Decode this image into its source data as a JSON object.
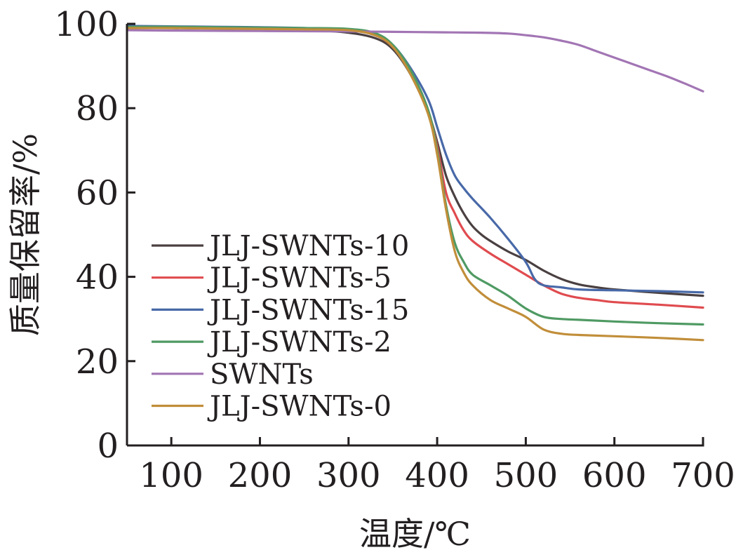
{
  "chart_data": {
    "type": "line",
    "title": "",
    "xlabel": "温度/℃",
    "ylabel": "质量保留率/%",
    "xlim": [
      50,
      700
    ],
    "ylim": [
      0,
      100
    ],
    "x_ticks": [
      100,
      200,
      300,
      400,
      500,
      600,
      700
    ],
    "y_ticks": [
      0,
      20,
      40,
      60,
      80,
      100
    ],
    "grid": false,
    "legend_position": "lower-left",
    "series": [
      {
        "name": "JLJ-SWNTs-10",
        "color": "#4a4041",
        "points": [
          [
            50,
            99.0
          ],
          [
            100,
            99.0
          ],
          [
            150,
            98.9
          ],
          [
            200,
            98.8
          ],
          [
            250,
            98.6
          ],
          [
            300,
            97.9
          ],
          [
            330,
            96.6
          ],
          [
            350,
            94.0
          ],
          [
            370,
            88.0
          ],
          [
            390,
            79.0
          ],
          [
            400,
            72.0
          ],
          [
            410,
            64.0
          ],
          [
            420,
            59.0
          ],
          [
            430,
            55.0
          ],
          [
            440,
            52.0
          ],
          [
            450,
            50.0
          ],
          [
            460,
            48.5
          ],
          [
            480,
            46.0
          ],
          [
            500,
            44.0
          ],
          [
            520,
            41.5
          ],
          [
            540,
            39.5
          ],
          [
            560,
            38.2
          ],
          [
            580,
            37.5
          ],
          [
            600,
            37.0
          ],
          [
            650,
            36.2
          ],
          [
            700,
            35.5
          ]
        ]
      },
      {
        "name": "JLJ-SWNTs-5",
        "color": "#e04b4f",
        "points": [
          [
            50,
            99.2
          ],
          [
            100,
            99.2
          ],
          [
            150,
            99.1
          ],
          [
            200,
            99.0
          ],
          [
            250,
            98.9
          ],
          [
            300,
            98.5
          ],
          [
            330,
            97.3
          ],
          [
            350,
            94.5
          ],
          [
            370,
            88.5
          ],
          [
            390,
            79.0
          ],
          [
            400,
            71.0
          ],
          [
            410,
            60.0
          ],
          [
            420,
            55.0
          ],
          [
            430,
            51.0
          ],
          [
            440,
            48.5
          ],
          [
            460,
            45.5
          ],
          [
            480,
            43.0
          ],
          [
            500,
            40.5
          ],
          [
            520,
            38.0
          ],
          [
            540,
            36.0
          ],
          [
            560,
            35.0
          ],
          [
            580,
            34.5
          ],
          [
            600,
            34.0
          ],
          [
            650,
            33.4
          ],
          [
            700,
            32.7
          ]
        ]
      },
      {
        "name": "JLJ-SWNTs-15",
        "color": "#4869a8",
        "points": [
          [
            50,
            99.5
          ],
          [
            100,
            99.4
          ],
          [
            150,
            99.3
          ],
          [
            200,
            99.2
          ],
          [
            250,
            99.0
          ],
          [
            300,
            98.6
          ],
          [
            330,
            97.5
          ],
          [
            350,
            95.0
          ],
          [
            370,
            89.5
          ],
          [
            390,
            82.0
          ],
          [
            400,
            75.5
          ],
          [
            410,
            69.0
          ],
          [
            420,
            64.0
          ],
          [
            430,
            61.0
          ],
          [
            440,
            58.5
          ],
          [
            460,
            54.0
          ],
          [
            480,
            49.0
          ],
          [
            500,
            43.5
          ],
          [
            510,
            39.5
          ],
          [
            520,
            38.0
          ],
          [
            540,
            37.5
          ],
          [
            560,
            37.0
          ],
          [
            600,
            36.8
          ],
          [
            650,
            36.6
          ],
          [
            700,
            36.3
          ]
        ]
      },
      {
        "name": "JLJ-SWNTs-2",
        "color": "#4f9a63",
        "points": [
          [
            50,
            99.3
          ],
          [
            100,
            99.3
          ],
          [
            150,
            99.2
          ],
          [
            200,
            99.1
          ],
          [
            250,
            99.0
          ],
          [
            300,
            98.8
          ],
          [
            330,
            97.8
          ],
          [
            350,
            95.0
          ],
          [
            370,
            89.0
          ],
          [
            390,
            79.5
          ],
          [
            400,
            70.0
          ],
          [
            410,
            57.0
          ],
          [
            420,
            48.0
          ],
          [
            430,
            43.5
          ],
          [
            440,
            40.5
          ],
          [
            460,
            38.0
          ],
          [
            480,
            35.5
          ],
          [
            500,
            32.5
          ],
          [
            520,
            30.5
          ],
          [
            540,
            30.0
          ],
          [
            560,
            29.8
          ],
          [
            600,
            29.4
          ],
          [
            650,
            29.0
          ],
          [
            700,
            28.7
          ]
        ]
      },
      {
        "name": "SWNTs",
        "color": "#a275b4",
        "points": [
          [
            50,
            98.5
          ],
          [
            100,
            98.4
          ],
          [
            200,
            98.3
          ],
          [
            300,
            98.2
          ],
          [
            350,
            98.1
          ],
          [
            400,
            98.0
          ],
          [
            450,
            97.9
          ],
          [
            480,
            97.7
          ],
          [
            500,
            97.3
          ],
          [
            520,
            96.8
          ],
          [
            540,
            96.0
          ],
          [
            560,
            95.0
          ],
          [
            580,
            93.5
          ],
          [
            600,
            92.0
          ],
          [
            620,
            90.5
          ],
          [
            640,
            89.0
          ],
          [
            660,
            87.5
          ],
          [
            680,
            85.8
          ],
          [
            700,
            84.0
          ]
        ]
      },
      {
        "name": "JLJ-SWNTs-0",
        "color": "#c18e3a",
        "points": [
          [
            50,
            99.0
          ],
          [
            100,
            99.0
          ],
          [
            150,
            98.9
          ],
          [
            200,
            98.8
          ],
          [
            250,
            98.7
          ],
          [
            300,
            98.5
          ],
          [
            330,
            97.3
          ],
          [
            350,
            94.5
          ],
          [
            370,
            88.0
          ],
          [
            390,
            78.5
          ],
          [
            400,
            69.0
          ],
          [
            410,
            56.0
          ],
          [
            420,
            46.0
          ],
          [
            430,
            41.0
          ],
          [
            440,
            38.0
          ],
          [
            460,
            34.5
          ],
          [
            480,
            32.5
          ],
          [
            500,
            30.5
          ],
          [
            520,
            27.5
          ],
          [
            540,
            26.5
          ],
          [
            560,
            26.2
          ],
          [
            600,
            25.9
          ],
          [
            650,
            25.5
          ],
          [
            700,
            25.0
          ]
        ]
      }
    ]
  }
}
